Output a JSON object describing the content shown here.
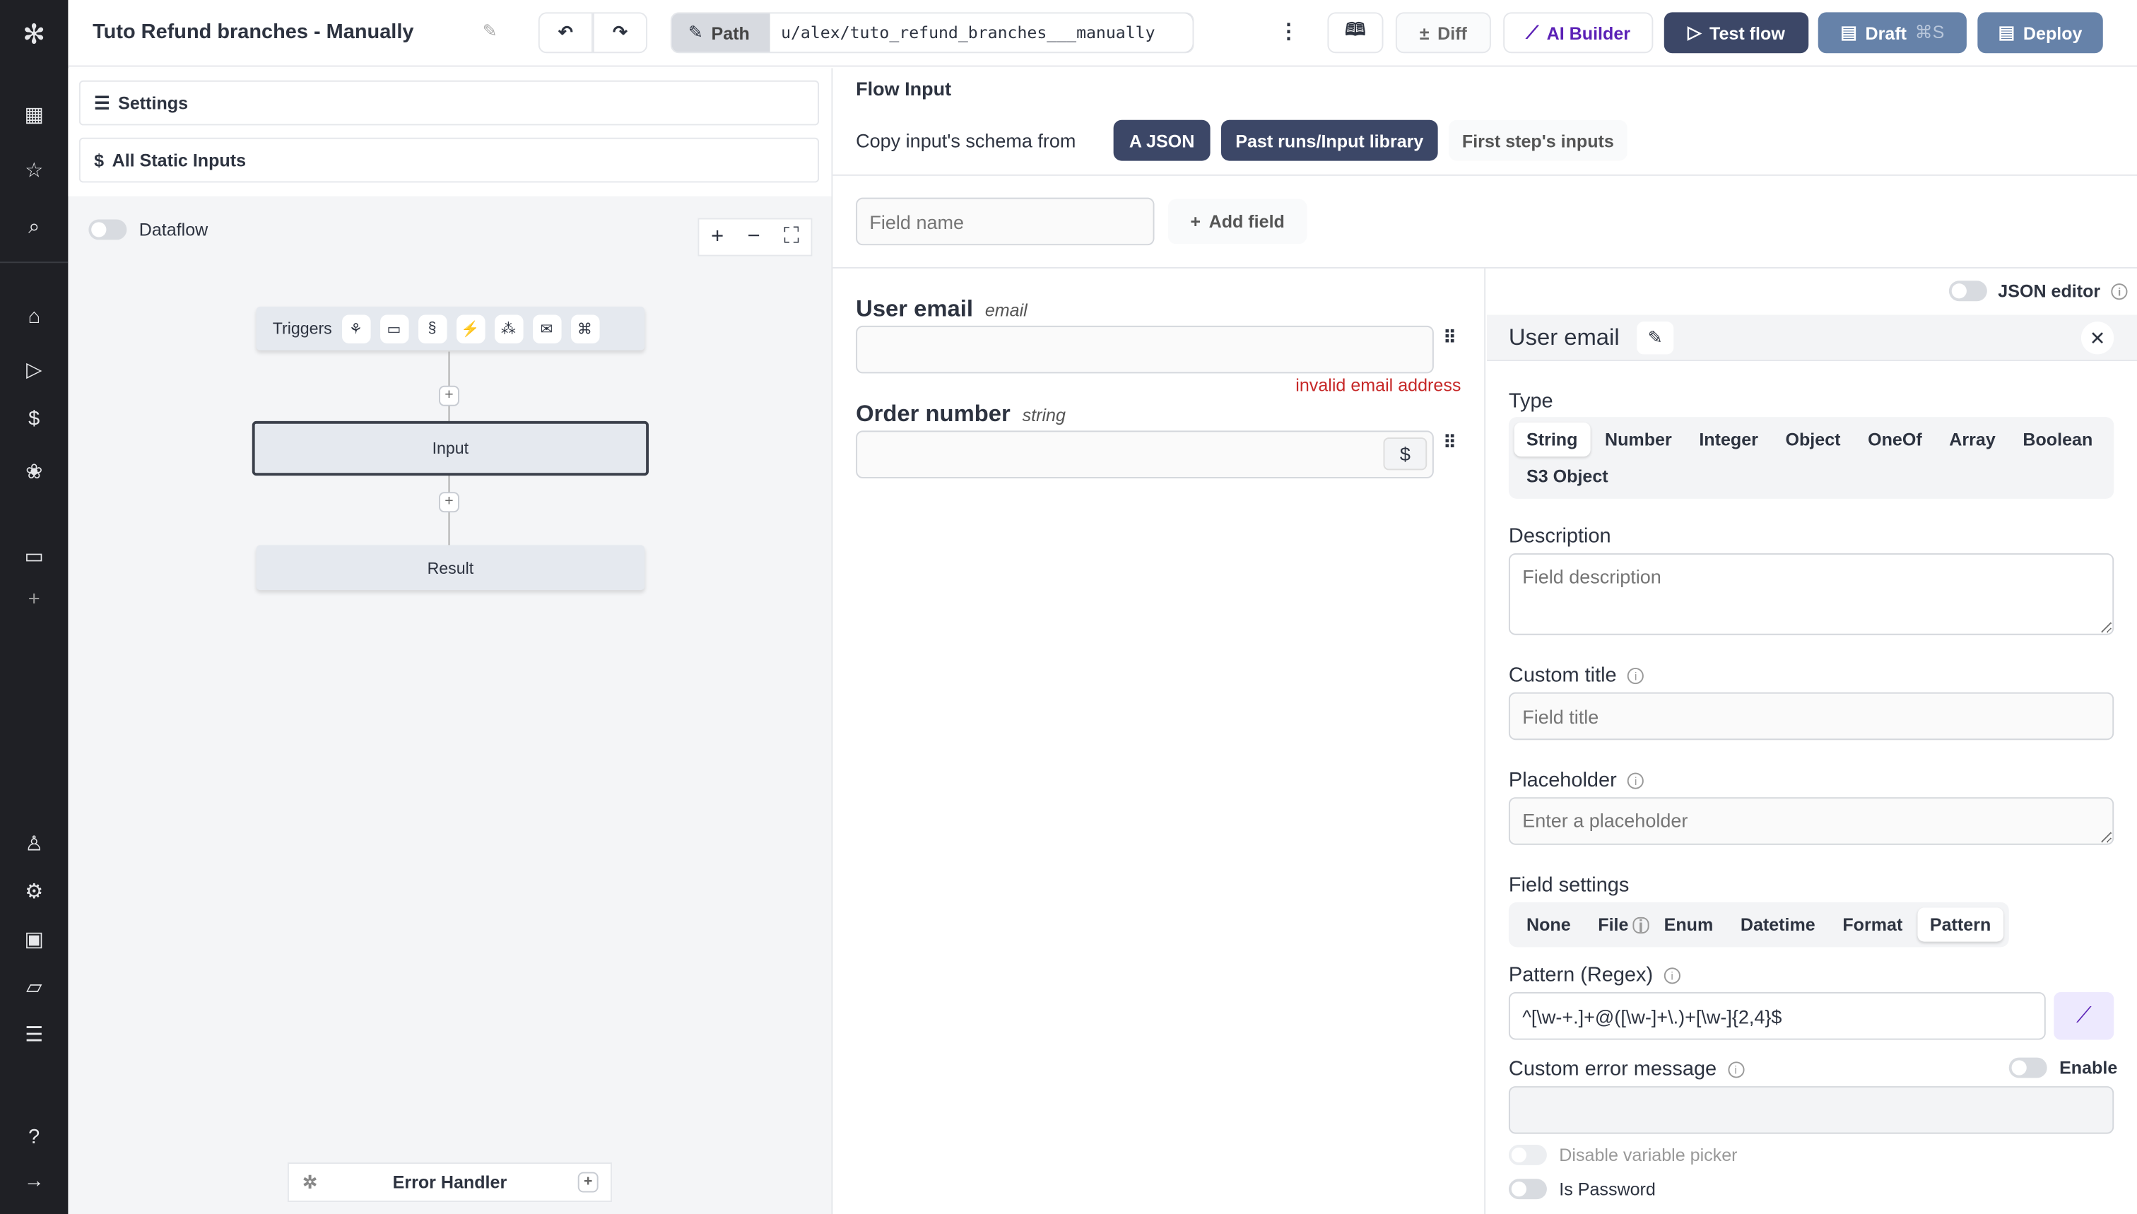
{
  "sidebar": {
    "icons": [
      "windmill-logo-icon",
      "building-icon",
      "star-icon",
      "search-icon",
      "home-icon",
      "play-icon",
      "dollar-icon",
      "resources-icon",
      "calendar-icon",
      "plus-icon",
      "user-icon",
      "gear-icon",
      "bot-icon",
      "folder-icon",
      "list-icon",
      "help-icon",
      "arrow-right-icon"
    ]
  },
  "header": {
    "title": "Tuto Refund branches - Manually",
    "path_label": "Path",
    "path_value": "u/alex/tuto_refund_branches___manually",
    "diff": "Diff",
    "ai_builder": "AI Builder",
    "test_flow": "Test flow",
    "draft": "Draft",
    "draft_shortcut": "⌘S",
    "deploy": "Deploy",
    "accent": "#3c4767",
    "ai_color": "#5b21b6"
  },
  "left": {
    "settings": "Settings",
    "static_inputs": "All Static Inputs",
    "dataflow": "Dataflow",
    "triggers": "Triggers",
    "input_node": "Input",
    "result_node": "Result",
    "error_handler": "Error Handler"
  },
  "flow_input": {
    "title": "Flow Input",
    "copy_label": "Copy input's schema from",
    "sources": [
      "A JSON",
      "Past runs/Input library",
      "First step's inputs"
    ],
    "field_name_placeholder": "Field name",
    "add_field": "Add field"
  },
  "fields": [
    {
      "name": "User email",
      "type": "email",
      "value": "",
      "error": "invalid email address"
    },
    {
      "name": "Order number",
      "type": "string",
      "value": ""
    }
  ],
  "editor": {
    "json_editor": "JSON editor",
    "title": "User email",
    "type_label": "Type",
    "types": [
      "String",
      "Number",
      "Integer",
      "Object",
      "OneOf",
      "Array",
      "Boolean",
      "S3 Object"
    ],
    "selected_type": "String",
    "description_label": "Description",
    "description_placeholder": "Field description",
    "custom_title_label": "Custom title",
    "custom_title_placeholder": "Field title",
    "placeholder_label": "Placeholder",
    "placeholder_placeholder": "Enter a placeholder",
    "field_settings_label": "Field settings",
    "settings": [
      "None",
      "File",
      "Enum",
      "Datetime",
      "Format",
      "Pattern"
    ],
    "selected_setting": "Pattern",
    "pattern_label": "Pattern (Regex)",
    "pattern_value": "^[\\w-+.]+@([\\w-]+\\.)+[\\w-]{2,4}$",
    "custom_error_label": "Custom error message",
    "enable": "Enable",
    "disable_picker": "Disable variable picker",
    "is_password": "Is Password",
    "error_color": "#c62828"
  }
}
